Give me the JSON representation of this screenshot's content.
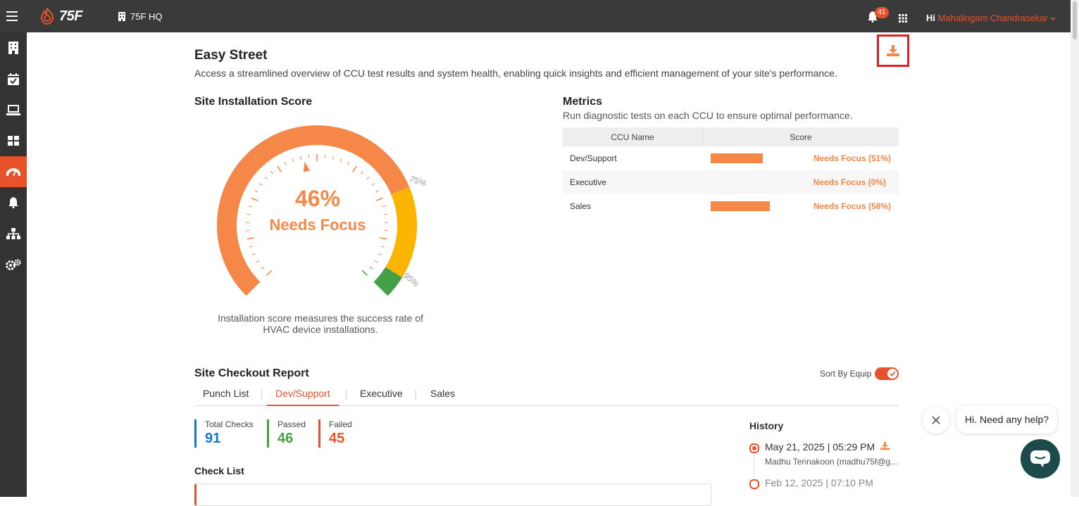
{
  "header": {
    "logo_text": "75F",
    "site_name": "75F HQ",
    "notifications_count": "41",
    "greeting": "Hi",
    "user_name": "Mahalingam Chandrasekar"
  },
  "sidebar": {
    "items": [
      {
        "name": "building",
        "active": false
      },
      {
        "name": "calendar-check",
        "active": false
      },
      {
        "name": "laptop",
        "active": false
      },
      {
        "name": "dashboard",
        "active": false
      },
      {
        "name": "gauge",
        "active": true
      },
      {
        "name": "bell",
        "active": false
      },
      {
        "name": "hierarchy",
        "active": false
      },
      {
        "name": "settings",
        "active": false
      }
    ]
  },
  "page": {
    "title": "Easy Street",
    "subtitle": "Access a streamlined overview of CCU test results and system health, enabling quick insights and efficient management of your site's performance."
  },
  "installation": {
    "heading": "Site Installation Score",
    "score_pct": "46%",
    "score_value": 46,
    "status": "Needs Focus",
    "marker_75": "75%",
    "marker_95": "95%",
    "description": "Installation score measures the success rate of HVAC device installations.",
    "colors": {
      "needs_focus": "#f58849",
      "good": "#fbb400",
      "excellent": "#43a047"
    }
  },
  "metrics": {
    "heading": "Metrics",
    "subtitle": "Run diagnostic tests on each CCU to ensure optimal performance.",
    "columns": [
      "CCU Name",
      "Score"
    ],
    "rows": [
      {
        "name": "Dev/Support",
        "score": 51,
        "status": "Needs Focus (51%)"
      },
      {
        "name": "Executive",
        "score": 0,
        "status": "Needs Focus (0%)"
      },
      {
        "name": "Sales",
        "score": 58,
        "status": "Needs Focus (58%)"
      }
    ]
  },
  "checkout": {
    "heading": "Site Checkout Report",
    "sort_label": "Sort By Equip",
    "sort_enabled": true,
    "tabs": [
      {
        "label": "Punch List",
        "active": false
      },
      {
        "label": "Dev/Support",
        "active": true
      },
      {
        "label": "Executive",
        "active": false
      },
      {
        "label": "Sales",
        "active": false
      }
    ],
    "stats": [
      {
        "label": "Total Checks",
        "value": "91",
        "color": "#1976d2"
      },
      {
        "label": "Passed",
        "value": "46",
        "color": "#43a047"
      },
      {
        "label": "Failed",
        "value": "45",
        "color": "#e8522b"
      }
    ],
    "checklist_heading": "Check List"
  },
  "history": {
    "heading": "History",
    "items": [
      {
        "date": "May 21, 2025 | 05:29 PM",
        "user": "Madhu Tennakoon (madhu75f@g..."
      },
      {
        "date": "Feb 12, 2025 | 07:10 PM",
        "user": ""
      }
    ]
  },
  "chat": {
    "prompt": "Hi. Need any help?"
  },
  "colors": {
    "accent": "#e8522b",
    "topbar": "#3a3a3a",
    "sidebar": "#333333"
  }
}
